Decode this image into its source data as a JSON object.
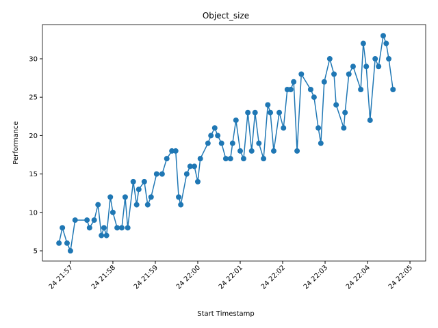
{
  "chart_data": {
    "type": "line",
    "title": "Object_size",
    "xlabel": "Start Timestamp",
    "ylabel": "Performance",
    "x": [
      1316.73,
      1316.81,
      1316.92,
      1317.0,
      1317.11,
      1317.39,
      1317.45,
      1317.56,
      1317.65,
      1317.73,
      1317.79,
      1317.85,
      1317.94,
      1318.0,
      1318.1,
      1318.21,
      1318.29,
      1318.35,
      1318.48,
      1318.56,
      1318.61,
      1318.74,
      1318.82,
      1318.9,
      1319.03,
      1319.16,
      1319.27,
      1319.39,
      1319.48,
      1319.55,
      1319.6,
      1319.74,
      1319.82,
      1319.92,
      1320.0,
      1320.06,
      1320.24,
      1320.31,
      1320.4,
      1320.47,
      1320.56,
      1320.66,
      1320.77,
      1320.82,
      1320.9,
      1321.0,
      1321.08,
      1321.18,
      1321.27,
      1321.35,
      1321.44,
      1321.55,
      1321.65,
      1321.71,
      1321.79,
      1321.92,
      1322.02,
      1322.11,
      1322.19,
      1322.26,
      1322.34,
      1322.44,
      1322.66,
      1322.74,
      1322.84,
      1322.9,
      1322.98,
      1323.11,
      1323.21,
      1323.26,
      1323.44,
      1323.47,
      1323.56,
      1323.66,
      1323.84,
      1323.9,
      1323.97,
      1324.06,
      1324.18,
      1324.26,
      1324.37,
      1324.44,
      1324.5,
      1324.6
    ],
    "series": [
      {
        "name": "Performance",
        "color": "#1f77b4",
        "values": [
          6,
          8,
          6,
          5,
          9,
          9,
          8,
          9,
          11,
          7,
          8,
          7,
          12,
          10,
          8,
          8,
          12,
          8,
          14,
          11,
          13,
          14,
          11,
          12,
          15,
          15,
          17,
          18,
          18,
          12,
          11,
          15,
          16,
          16,
          14,
          17,
          19,
          20,
          21,
          20,
          19,
          17,
          17,
          19,
          22,
          18,
          17,
          23,
          18,
          23,
          19,
          17,
          24,
          23,
          18,
          23,
          21,
          26,
          26,
          27,
          18,
          28,
          26,
          25,
          21,
          19,
          27,
          30,
          28,
          24,
          21,
          23,
          28,
          29,
          26,
          32,
          29,
          22,
          30,
          29,
          33,
          32,
          30,
          26
        ]
      }
    ],
    "xlim": [
      1316.34,
      1325.37
    ],
    "xticks": [
      {
        "value": 1317,
        "label": "24 21:57"
      },
      {
        "value": 1318,
        "label": "24 21:58"
      },
      {
        "value": 1319,
        "label": "24 21:59"
      },
      {
        "value": 1320,
        "label": "24 22:00"
      },
      {
        "value": 1321,
        "label": "24 22:01"
      },
      {
        "value": 1322,
        "label": "24 22:02"
      },
      {
        "value": 1323,
        "label": "24 22:03"
      },
      {
        "value": 1324,
        "label": "24 22:04"
      },
      {
        "value": 1325,
        "label": "24 22:05"
      }
    ],
    "ylim": [
      3.67,
      34.45
    ],
    "yticks": [
      5,
      10,
      15,
      20,
      25,
      30
    ],
    "grid": false
  }
}
